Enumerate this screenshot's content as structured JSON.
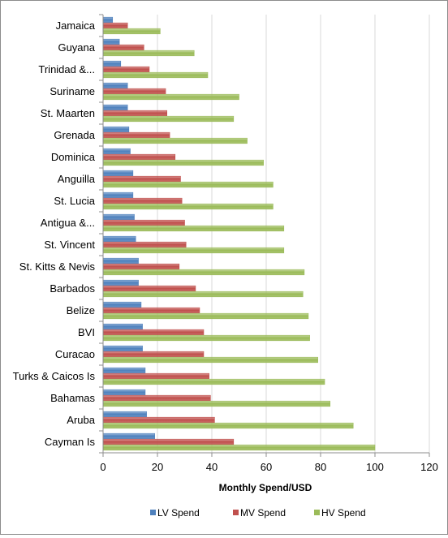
{
  "chart_data": {
    "type": "bar",
    "orientation": "horizontal",
    "categories": [
      "Jamaica",
      "Guyana",
      "Trinidad &...",
      "Suriname",
      "St. Maarten",
      "Grenada",
      "Dominica",
      "Anguilla",
      "St. Lucia",
      "Antigua &...",
      "St. Vincent",
      "St. Kitts & Nevis",
      "Barbados",
      "Belize",
      "BVI",
      "Curacao",
      "Turks & Caicos Is",
      "Bahamas",
      "Aruba",
      "Cayman Is"
    ],
    "series": [
      {
        "name": "LV Spend",
        "color": "#4f81bd",
        "values": [
          3.5,
          6,
          6.5,
          9,
          9,
          9.5,
          10,
          11,
          11,
          11.5,
          12,
          13,
          13,
          14,
          14.5,
          14.5,
          15.5,
          15.5,
          16,
          19
        ]
      },
      {
        "name": "MV Spend",
        "color": "#c0504d",
        "values": [
          9,
          15,
          17,
          23,
          23.5,
          24.5,
          26.5,
          28.5,
          29,
          30,
          30.5,
          28,
          34,
          35.5,
          37,
          37,
          39,
          39.5,
          41,
          48
        ]
      },
      {
        "name": "HV Spend",
        "color": "#9bbb59",
        "values": [
          21,
          33.5,
          38.5,
          50,
          48,
          53,
          59,
          62.5,
          62.5,
          66.5,
          66.5,
          74,
          73.5,
          75.5,
          76,
          79,
          81.5,
          83.5,
          92,
          100
        ]
      }
    ],
    "xlabel": "Monthly Spend/USD",
    "ylabel": "",
    "xlim": [
      0,
      120
    ],
    "xticks": [
      "0",
      "20",
      "40",
      "60",
      "80",
      "100",
      "120"
    ],
    "grid": true,
    "legend_position": "bottom"
  }
}
